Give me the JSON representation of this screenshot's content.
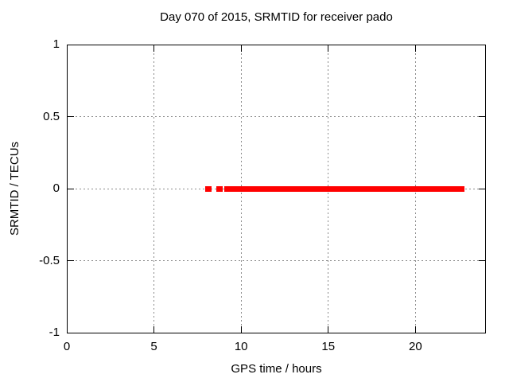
{
  "figure": {
    "title": "Day 070 of 2015, SRMTID for receiver pado",
    "xlabel": "GPS time / hours",
    "ylabel": "SRMTID / TECUs"
  },
  "colors": {
    "data_red": "#ff0000",
    "grid_gray": "#8c8c8c",
    "axis_black": "#000000",
    "background_white": "#ffffff",
    "text_black": "#000000"
  },
  "chart_data": {
    "type": "scatter",
    "title": "Day 070 of 2015, SRMTID for receiver pado",
    "xlabel": "GPS time / hours",
    "ylabel": "SRMTID / TECUs",
    "xlim": [
      0,
      24
    ],
    "ylim": [
      -1,
      1
    ],
    "xticks": [
      0,
      5,
      10,
      15,
      20
    ],
    "yticks": [
      -1,
      -0.5,
      0,
      0.5,
      1
    ],
    "grid": true,
    "legend": false,
    "marker": "filled-square",
    "marker_size_px": 7,
    "marker_color": "#ff0000",
    "series": [
      {
        "name": "SRMTID",
        "y_value": 0,
        "x_segments": [
          [
            7.95,
            8.3
          ],
          [
            8.6,
            8.95
          ],
          [
            9.05,
            22.8
          ]
        ]
      }
    ]
  }
}
